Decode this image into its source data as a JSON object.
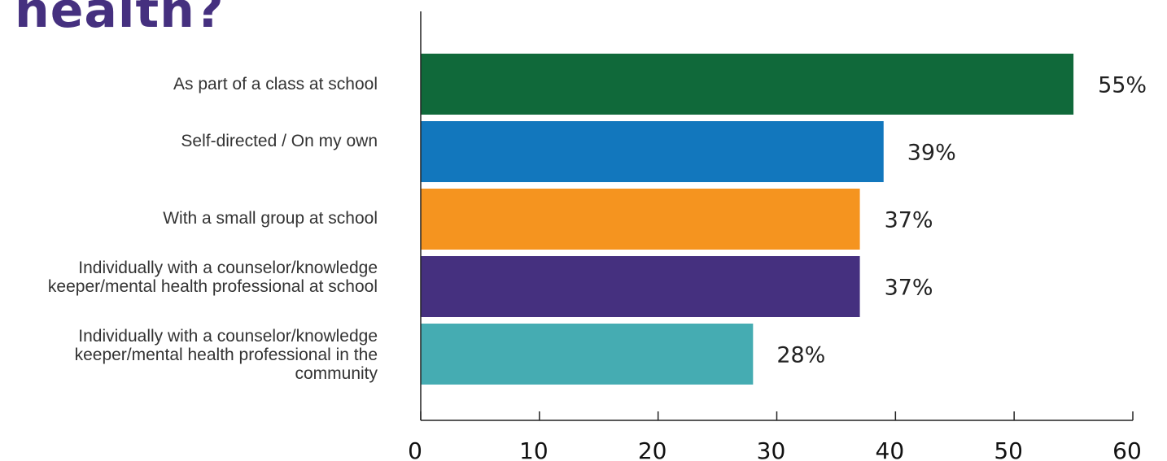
{
  "title_fragment": "health?",
  "chart_data": {
    "type": "bar",
    "orientation": "horizontal",
    "title": "health?",
    "xlabel": "",
    "ylabel": "",
    "xlim": [
      0,
      60
    ],
    "xticks": [
      0,
      10,
      20,
      30,
      40,
      50,
      60
    ],
    "grid": false,
    "categories": [
      "As part of a class at school",
      "Self-directed / On my own",
      "With a small group at school",
      "Individually with a counselor/knowledge keeper/mental health professional at school",
      "Individually with a counselor/knowledge keeper/mental health professional in the community"
    ],
    "values": [
      55,
      39,
      37,
      37,
      28
    ],
    "value_labels": [
      "55%",
      "39%",
      "37%",
      "37%",
      "28%"
    ],
    "colors": [
      "#10693a",
      "#1277bd",
      "#f5941f",
      "#45307f",
      "#45acb2"
    ]
  }
}
